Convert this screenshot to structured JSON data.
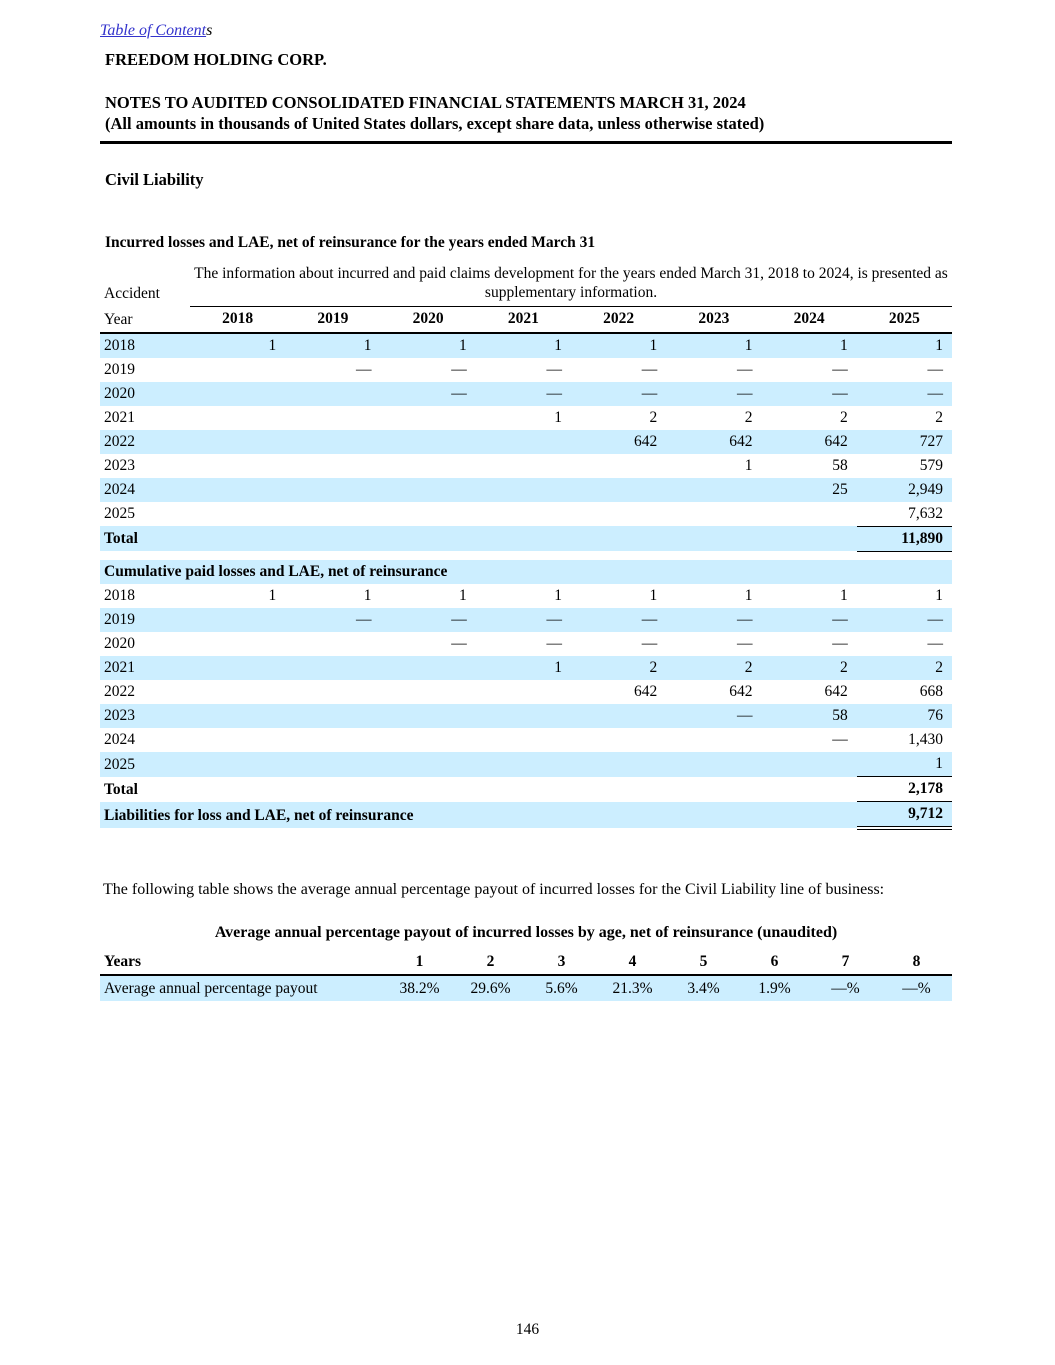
{
  "header": {
    "toc_link_text": "Table of Content",
    "toc_link_suffix": "s",
    "company": "FREEDOM HOLDING CORP.",
    "title": "NOTES TO AUDITED CONSOLIDATED FINANCIAL STATEMENTS MARCH 31, 2024",
    "subtitle": "(All amounts in thousands of United States dollars, except share data, unless otherwise stated)"
  },
  "section": {
    "heading": "Civil Liability"
  },
  "incurred_table": {
    "title": "Incurred losses and LAE, net of reinsurance for the years ended March 31",
    "accident_label": "Accident",
    "year_label": "Year",
    "note": "The information about incurred and paid claims development for the years ended March 31, 2018 to 2024, is presented as supplementary information.",
    "columns": [
      "2018",
      "2019",
      "2020",
      "2021",
      "2022",
      "2023",
      "2024",
      "2025"
    ],
    "rows": [
      {
        "label": "2018",
        "values": [
          "1",
          "1",
          "1",
          "1",
          "1",
          "1",
          "1",
          "1"
        ]
      },
      {
        "label": "2019",
        "values": [
          "",
          "—",
          "—",
          "—",
          "—",
          "—",
          "—",
          "—"
        ]
      },
      {
        "label": "2020",
        "values": [
          "",
          "",
          "—",
          "—",
          "—",
          "—",
          "—",
          "—"
        ]
      },
      {
        "label": "2021",
        "values": [
          "",
          "",
          "",
          "1",
          "2",
          "2",
          "2",
          "2"
        ]
      },
      {
        "label": "2022",
        "values": [
          "",
          "",
          "",
          "",
          "642",
          "642",
          "642",
          "727"
        ]
      },
      {
        "label": "2023",
        "values": [
          "",
          "",
          "",
          "",
          "",
          "1",
          "58",
          "579"
        ]
      },
      {
        "label": "2024",
        "values": [
          "",
          "",
          "",
          "",
          "",
          "",
          "25",
          "2,949"
        ]
      },
      {
        "label": "2025",
        "values": [
          "",
          "",
          "",
          "",
          "",
          "",
          "",
          "7,632"
        ]
      }
    ],
    "total_label": "Total",
    "total_value": "11,890"
  },
  "paid_table": {
    "header": "Cumulative paid losses and LAE, net of reinsurance",
    "rows": [
      {
        "label": "2018",
        "values": [
          "1",
          "1",
          "1",
          "1",
          "1",
          "1",
          "1",
          "1"
        ]
      },
      {
        "label": "2019",
        "values": [
          "",
          "—",
          "—",
          "—",
          "—",
          "—",
          "—",
          "—"
        ]
      },
      {
        "label": "2020",
        "values": [
          "",
          "",
          "—",
          "—",
          "—",
          "—",
          "—",
          "—"
        ]
      },
      {
        "label": "2021",
        "values": [
          "",
          "",
          "",
          "1",
          "2",
          "2",
          "2",
          "2"
        ]
      },
      {
        "label": "2022",
        "values": [
          "",
          "",
          "",
          "",
          "642",
          "642",
          "642",
          "668"
        ]
      },
      {
        "label": "2023",
        "values": [
          "",
          "",
          "",
          "",
          "",
          "—",
          "58",
          "76"
        ]
      },
      {
        "label": "2024",
        "values": [
          "",
          "",
          "",
          "",
          "",
          "",
          "—",
          "1,430"
        ]
      },
      {
        "label": "2025",
        "values": [
          "",
          "",
          "",
          "",
          "",
          "",
          "",
          "1"
        ]
      }
    ],
    "total_label": "Total",
    "total_value": "2,178",
    "liabilities_label": "Liabilities for loss and LAE, net of reinsurance",
    "liabilities_value": "9,712"
  },
  "payout_section": {
    "intro": "The following table shows the average annual percentage payout of incurred losses for the Civil Liability line of business:",
    "table_title": "Average annual percentage payout of incurred losses by age, net of reinsurance (unaudited)",
    "years_label": "Years",
    "columns": [
      "1",
      "2",
      "3",
      "4",
      "5",
      "6",
      "7",
      "8"
    ],
    "row_label": "Average annual percentage payout",
    "values": [
      "38.2%",
      "29.6%",
      "5.6%",
      "21.3%",
      "3.4%",
      "1.9%",
      "—%",
      "—%"
    ]
  },
  "footer": {
    "page_number": "146"
  },
  "colors": {
    "row_highlight": "#cceeff",
    "link": "#3333cc",
    "text": "#000000"
  }
}
